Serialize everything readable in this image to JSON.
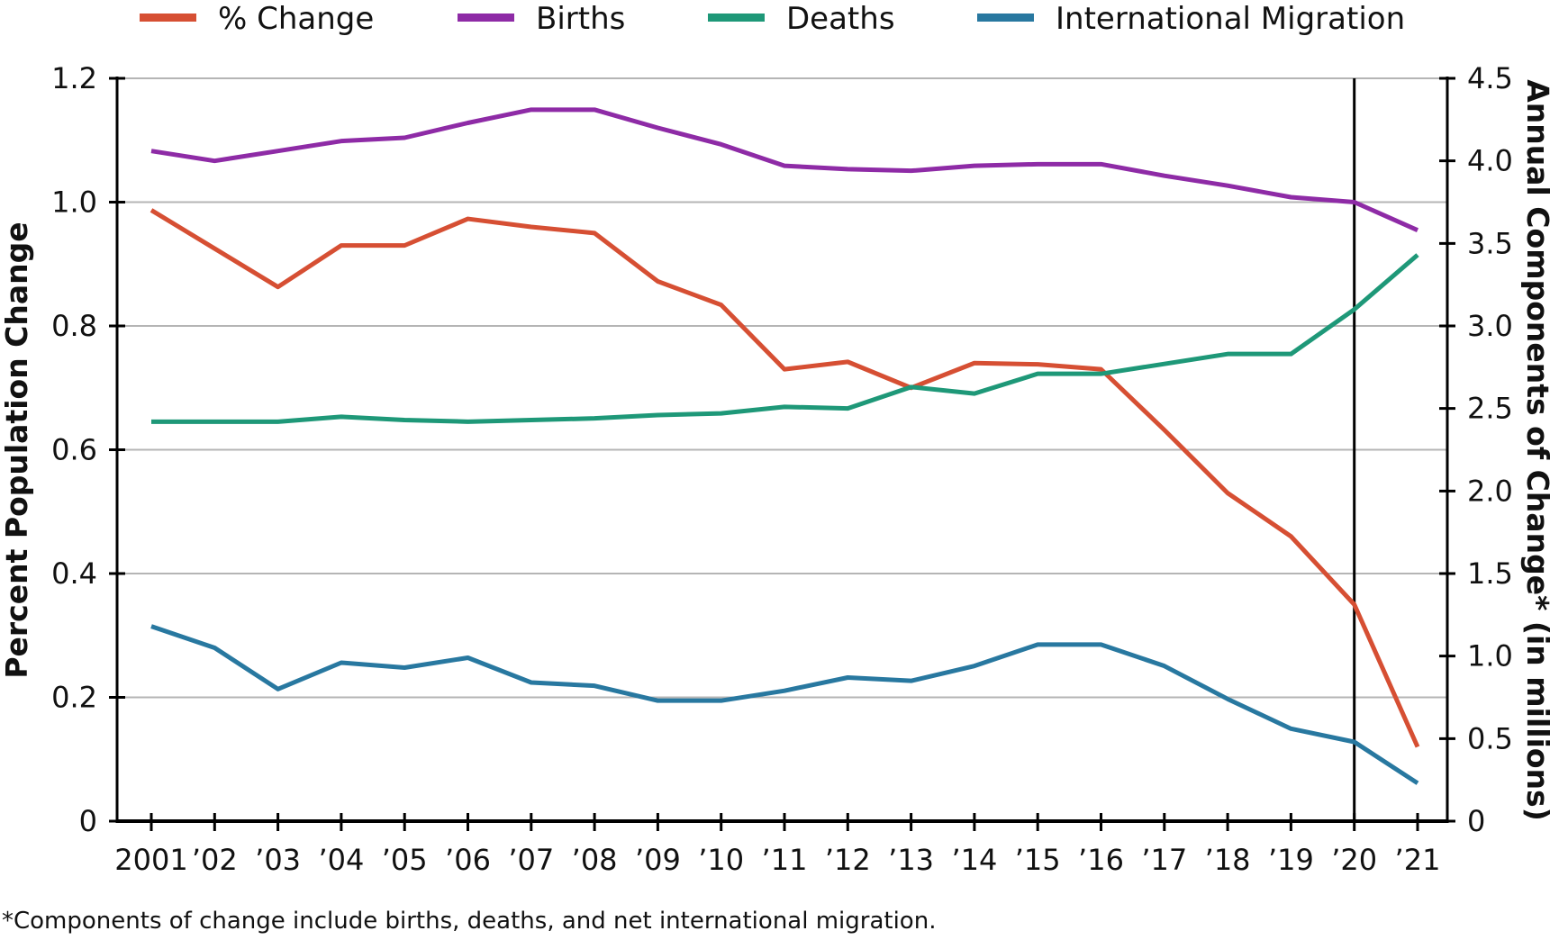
{
  "chart_data": {
    "type": "line",
    "title": "",
    "footnote": "*Components of change include births, deaths, and net international migration.",
    "xlabel": "",
    "ylabel_left": "Percent Population Change",
    "ylabel_right": "Annual Components of Change* (in millions)",
    "x": [
      "2001",
      "’02",
      "’03",
      "’04",
      "’05",
      "’06",
      "’07",
      "’08",
      "’09",
      "’10",
      "’11",
      "’12",
      "’13",
      "’14",
      "’15",
      "’16",
      "’17",
      "’18",
      "’19",
      "’20",
      "’21"
    ],
    "ylim_left": [
      0,
      1.2
    ],
    "yticks_left": [
      "0",
      "0.2",
      "0.4",
      "0.6",
      "0.8",
      "1.0",
      "1.2"
    ],
    "ylim_right": [
      0,
      4.5
    ],
    "yticks_right": [
      "0",
      "0.5",
      "1.0",
      "1.5",
      "2.0",
      "2.5",
      "3.0",
      "3.5",
      "4.0",
      "4.5"
    ],
    "grid": true,
    "legend_position": "top",
    "vertical_marker": "’20",
    "series": [
      {
        "name": "% Change",
        "axis": "left",
        "color": "#d64f33",
        "values": [
          0.987,
          0.925,
          0.863,
          0.93,
          0.93,
          0.973,
          0.96,
          0.95,
          0.872,
          0.834,
          0.73,
          0.742,
          0.7,
          0.74,
          0.738,
          0.73,
          0.632,
          0.53,
          0.46,
          0.35,
          0.12
        ]
      },
      {
        "name": "Births",
        "axis": "right",
        "color": "#8e2ba6",
        "values": [
          4.06,
          4.0,
          4.06,
          4.12,
          4.14,
          4.23,
          4.31,
          4.31,
          4.2,
          4.1,
          3.97,
          3.95,
          3.94,
          3.97,
          3.98,
          3.98,
          3.91,
          3.85,
          3.78,
          3.75,
          3.58
        ]
      },
      {
        "name": "Deaths",
        "axis": "right",
        "color": "#1e9878",
        "values": [
          2.42,
          2.42,
          2.42,
          2.45,
          2.43,
          2.42,
          2.43,
          2.44,
          2.46,
          2.47,
          2.51,
          2.5,
          2.63,
          2.59,
          2.71,
          2.71,
          2.77,
          2.83,
          2.83,
          3.1,
          3.43
        ]
      },
      {
        "name": "International Migration",
        "axis": "right",
        "color": "#2878a0",
        "values": [
          1.18,
          1.05,
          0.8,
          0.96,
          0.93,
          0.99,
          0.84,
          0.82,
          0.73,
          0.73,
          0.79,
          0.87,
          0.85,
          0.94,
          1.07,
          1.07,
          0.94,
          0.74,
          0.56,
          0.48,
          0.23
        ]
      }
    ]
  }
}
